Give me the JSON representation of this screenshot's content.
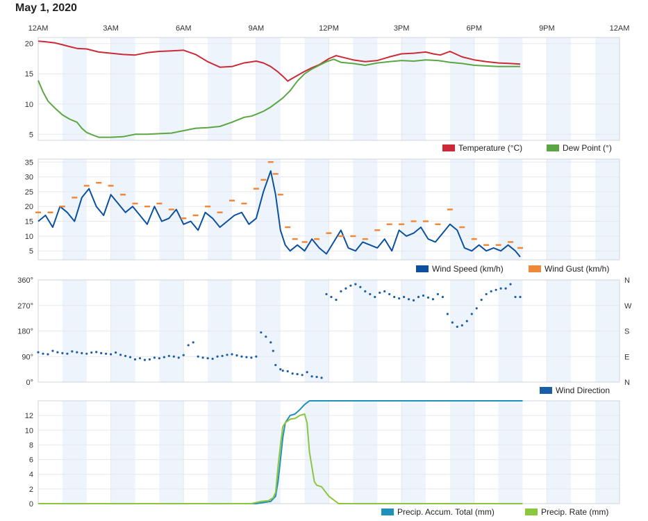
{
  "page": {
    "date_title": "May 1, 2020"
  },
  "time_axis": {
    "tick_labels": [
      "12AM",
      "3AM",
      "6AM",
      "9AM",
      "12PM",
      "3PM",
      "6PM",
      "9PM",
      "12AM"
    ],
    "tick_hours": [
      0,
      3,
      6,
      9,
      12,
      15,
      18,
      21,
      24
    ],
    "range_hours": [
      0,
      24
    ]
  },
  "colors": {
    "temperature": "#cc2a36",
    "dew_point": "#5aa642",
    "wind_speed": "#0b4fa0",
    "wind_gust": "#f0883a",
    "wind_direction": "#1b5ea8",
    "precip_total": "#1f90b8",
    "precip_rate": "#8cc63f",
    "band": "#eef4fb",
    "grid": "#e4e8ee"
  },
  "chart_data": [
    {
      "id": "temp_dew",
      "type": "line",
      "ylim": [
        4,
        21
      ],
      "yticks": [
        5,
        10,
        15,
        20
      ],
      "ytick_labels": [
        "5",
        "10",
        "15",
        "20"
      ],
      "legend": [
        "Temperature (°C)",
        "Dew Point (°)"
      ],
      "series": [
        {
          "name": "Temperature (°C)",
          "color_key": "temperature",
          "x": [
            0,
            0.3,
            0.7,
            1,
            1.3,
            1.6,
            2,
            2.5,
            3,
            3.5,
            4,
            4.5,
            5,
            5.5,
            6,
            6.5,
            7,
            7.5,
            8,
            8.5,
            9,
            9.3,
            9.6,
            9.9,
            10.1,
            10.3,
            10.6,
            11,
            11.3,
            11.6,
            12,
            12.3,
            12.6,
            13,
            13.5,
            14,
            14.5,
            15,
            15.5,
            16,
            16.3,
            16.6,
            17,
            17.5,
            18,
            18.5,
            19,
            19.5,
            19.9
          ],
          "values": [
            20.4,
            20.3,
            20.1,
            19.8,
            19.5,
            19.2,
            19.1,
            18.6,
            18.4,
            18.2,
            18.1,
            18.5,
            18.7,
            18.8,
            18.9,
            18.2,
            17,
            16.1,
            16.2,
            16.8,
            17.1,
            16.8,
            16.2,
            15.3,
            14.6,
            13.8,
            14.5,
            15.4,
            16,
            16.5,
            17.5,
            18,
            17.7,
            17.3,
            17,
            17.2,
            17.8,
            18.3,
            18.4,
            18.6,
            18.3,
            18.1,
            18.7,
            17.8,
            17.3,
            17,
            16.8,
            16.7,
            16.6
          ]
        },
        {
          "name": "Dew Point (°)",
          "color_key": "dew_point",
          "x": [
            0,
            0.2,
            0.4,
            0.7,
            1,
            1.3,
            1.6,
            1.8,
            2,
            2.3,
            2.5,
            3,
            3.5,
            4,
            4.5,
            5,
            5.5,
            6,
            6.5,
            7,
            7.5,
            8,
            8.5,
            8.8,
            9,
            9.3,
            9.6,
            9.9,
            10.1,
            10.4,
            10.7,
            11,
            11.3,
            11.6,
            11.9,
            12.2,
            12.5,
            13,
            13.5,
            14,
            14.5,
            15,
            15.5,
            16,
            16.5,
            17,
            17.5,
            18,
            18.5,
            19,
            19.5,
            19.9
          ],
          "values": [
            13.9,
            12,
            10.5,
            9.3,
            8.2,
            7.5,
            7,
            6,
            5.3,
            4.8,
            4.5,
            4.5,
            4.6,
            5,
            5,
            5.1,
            5.2,
            5.6,
            6,
            6.1,
            6.3,
            7,
            7.8,
            8,
            8.3,
            8.8,
            9.5,
            10.4,
            11,
            12.2,
            13.8,
            15,
            15.8,
            16.4,
            17,
            17.4,
            16.9,
            16.7,
            16.4,
            16.8,
            17,
            17.2,
            17.1,
            17.3,
            17.2,
            16.9,
            16.7,
            16.4,
            16.3,
            16.2,
            16.2,
            16.2
          ]
        }
      ]
    },
    {
      "id": "wind",
      "type": "line",
      "ylim": [
        2,
        36
      ],
      "yticks": [
        5,
        10,
        15,
        20,
        25,
        30,
        35
      ],
      "ytick_labels": [
        "5",
        "10",
        "15",
        "20",
        "25",
        "30",
        "35"
      ],
      "legend": [
        "Wind Speed (km/h)",
        "Wind Gust (km/h)"
      ],
      "series": [
        {
          "name": "Wind Speed (km/h)",
          "color_key": "wind_speed",
          "x": [
            0,
            0.3,
            0.6,
            0.9,
            1.2,
            1.5,
            1.8,
            2.1,
            2.4,
            2.7,
            3,
            3.3,
            3.6,
            3.9,
            4.2,
            4.5,
            4.8,
            5.1,
            5.4,
            5.7,
            6,
            6.3,
            6.6,
            6.9,
            7.2,
            7.5,
            7.8,
            8.1,
            8.4,
            8.7,
            9,
            9.3,
            9.6,
            9.8,
            10,
            10.2,
            10.4,
            10.7,
            11,
            11.3,
            11.6,
            11.9,
            12.2,
            12.5,
            12.8,
            13.1,
            13.4,
            13.7,
            14,
            14.3,
            14.6,
            14.9,
            15.2,
            15.5,
            15.8,
            16.1,
            16.4,
            16.7,
            17,
            17.3,
            17.6,
            17.9,
            18.2,
            18.5,
            18.8,
            19.1,
            19.4,
            19.7,
            19.9
          ],
          "values": [
            15,
            17,
            13,
            20,
            18,
            15,
            23,
            26,
            20,
            17,
            24,
            21,
            18,
            20,
            17,
            14,
            20,
            15,
            16,
            19,
            14,
            15,
            12,
            18,
            16,
            13,
            15,
            17,
            18,
            14,
            16,
            25,
            32,
            24,
            12,
            7,
            5,
            7,
            5,
            9,
            6,
            4,
            8,
            12,
            6,
            5,
            8,
            7,
            6,
            9,
            5,
            12,
            10,
            11,
            13,
            9,
            8,
            11,
            14,
            12,
            6,
            5,
            7,
            5,
            6,
            5,
            7,
            5,
            3
          ]
        },
        {
          "name": "Wind Gust (km/h)",
          "color_key": "wind_gust",
          "x": [
            0,
            0.5,
            1,
            1.5,
            2,
            2.5,
            3,
            3.5,
            4,
            4.5,
            5,
            5.5,
            6,
            6.5,
            7,
            7.5,
            8,
            8.5,
            9,
            9.3,
            9.6,
            9.8,
            10,
            10.3,
            10.6,
            11,
            11.5,
            12,
            12.5,
            13,
            13.5,
            14,
            14.5,
            15,
            15.5,
            16,
            16.5,
            17,
            17.5,
            18,
            18.5,
            19,
            19.5,
            19.9
          ],
          "values": [
            18,
            18,
            20,
            23,
            27,
            28,
            27,
            24,
            21,
            20,
            21,
            19,
            16,
            17,
            20,
            18,
            22,
            21,
            26,
            29,
            35,
            31,
            24,
            13,
            9,
            8,
            9,
            11,
            10,
            10,
            9,
            12,
            14,
            14,
            15,
            15,
            14,
            19,
            13,
            9,
            7,
            7,
            8,
            6
          ]
        }
      ]
    },
    {
      "id": "wind_direction",
      "type": "scatter",
      "ylim": [
        0,
        360
      ],
      "yticks": [
        0,
        90,
        180,
        270,
        360
      ],
      "ytick_labels": [
        "0°",
        "90°",
        "180°",
        "270°",
        "360°"
      ],
      "right_labels": [
        "N",
        "E",
        "S",
        "W",
        "N"
      ],
      "legend": [
        "Wind Direction"
      ],
      "series": [
        {
          "name": "Wind Direction",
          "color_key": "wind_direction",
          "x": [
            0,
            0.2,
            0.4,
            0.6,
            0.8,
            1,
            1.2,
            1.4,
            1.6,
            1.8,
            2,
            2.2,
            2.4,
            2.6,
            2.8,
            3,
            3.2,
            3.4,
            3.6,
            3.8,
            4,
            4.2,
            4.4,
            4.6,
            4.8,
            5,
            5.2,
            5.4,
            5.6,
            5.8,
            6,
            6.2,
            6.4,
            6.6,
            6.8,
            7,
            7.2,
            7.4,
            7.6,
            7.8,
            8,
            8.2,
            8.4,
            8.6,
            8.8,
            9,
            9.2,
            9.4,
            9.6,
            9.7,
            9.8,
            10,
            10.1,
            10.3,
            10.5,
            10.7,
            10.9,
            11.1,
            11.3,
            11.5,
            11.7,
            11.9,
            12.1,
            12.3,
            12.5,
            12.7,
            12.9,
            13.1,
            13.3,
            13.5,
            13.7,
            13.9,
            14.1,
            14.3,
            14.5,
            14.7,
            14.9,
            15.1,
            15.3,
            15.5,
            15.7,
            15.9,
            16.1,
            16.3,
            16.5,
            16.7,
            16.9,
            17.1,
            17.3,
            17.5,
            17.7,
            17.9,
            18.1,
            18.3,
            18.5,
            18.7,
            18.9,
            19.1,
            19.3,
            19.5,
            19.7,
            19.9
          ],
          "values": [
            105,
            100,
            98,
            110,
            105,
            102,
            100,
            108,
            105,
            102,
            100,
            104,
            106,
            102,
            100,
            98,
            104,
            96,
            92,
            88,
            80,
            84,
            78,
            80,
            86,
            84,
            88,
            92,
            90,
            86,
            95,
            130,
            140,
            90,
            86,
            84,
            82,
            90,
            92,
            96,
            98,
            94,
            90,
            88,
            86,
            90,
            175,
            160,
            140,
            110,
            60,
            45,
            40,
            38,
            30,
            28,
            25,
            35,
            20,
            18,
            15,
            310,
            300,
            290,
            320,
            330,
            340,
            345,
            335,
            320,
            310,
            300,
            315,
            320,
            310,
            300,
            295,
            300,
            292,
            288,
            300,
            305,
            298,
            292,
            310,
            300,
            240,
            210,
            195,
            200,
            215,
            240,
            260,
            290,
            310,
            320,
            325,
            330,
            330,
            345,
            300,
            300
          ]
        }
      ]
    },
    {
      "id": "precip",
      "type": "line",
      "ylim": [
        0,
        14
      ],
      "yticks": [
        0,
        2,
        4,
        6,
        8,
        10,
        12
      ],
      "ytick_labels": [
        "0",
        "2",
        "4",
        "6",
        "8",
        "10",
        "12"
      ],
      "legend": [
        "Precip. Accum. Total (mm)",
        "Precip. Rate (mm)"
      ],
      "series": [
        {
          "name": "Precip. Accum. Total (mm)",
          "color_key": "precip_total",
          "x": [
            0,
            9,
            9.4,
            9.6,
            9.8,
            9.9,
            10,
            10.1,
            10.2,
            10.4,
            10.6,
            10.8,
            11,
            11.2,
            11.3,
            20
          ],
          "values": [
            0,
            0,
            0.2,
            0.3,
            1,
            3,
            6,
            9,
            11,
            12,
            12.2,
            12.8,
            13.5,
            14,
            14,
            14
          ]
        },
        {
          "name": "Precip. Rate (mm)",
          "color_key": "precip_rate",
          "x": [
            0,
            8.8,
            9.2,
            9.5,
            9.7,
            9.8,
            9.9,
            10,
            10.1,
            10.2,
            10.4,
            10.6,
            10.8,
            11,
            11.1,
            11.2,
            11.4,
            11.5,
            11.7,
            12,
            12.2,
            12.4,
            13,
            20
          ],
          "values": [
            0,
            0,
            0.3,
            0.4,
            0.8,
            1.5,
            5,
            8,
            10.5,
            11,
            11.5,
            11.6,
            12,
            12.2,
            11,
            7,
            3,
            2.5,
            2.3,
            1,
            0.5,
            0,
            0,
            0
          ]
        }
      ]
    }
  ]
}
